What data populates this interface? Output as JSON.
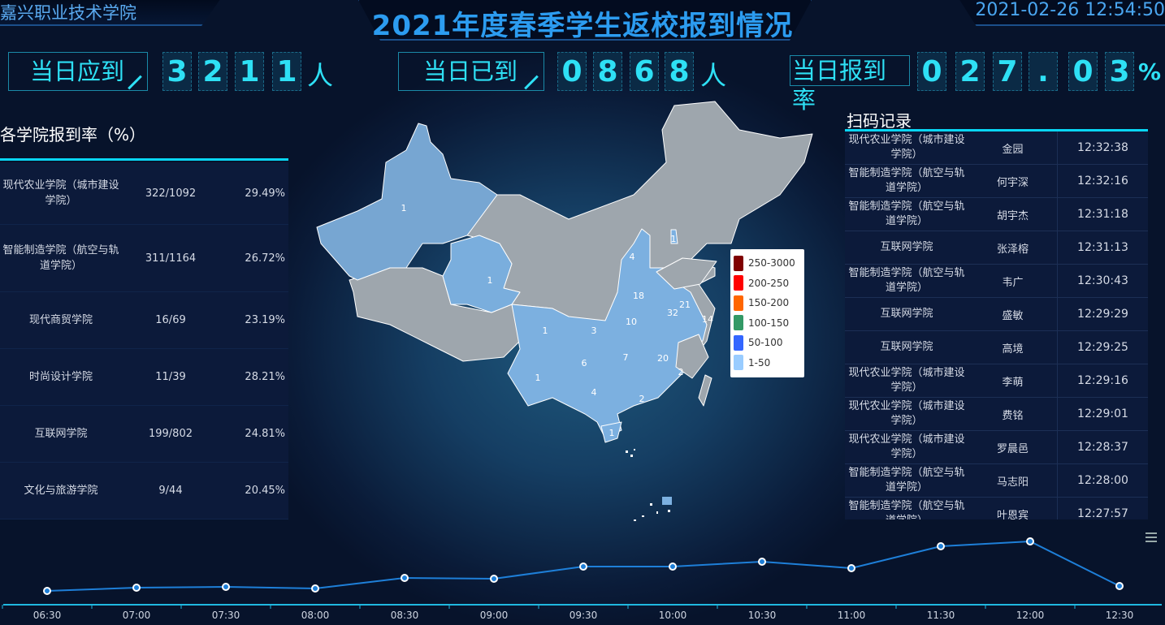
{
  "header": {
    "school": "嘉兴职业技术学院",
    "title": "2021年度春季学生返校报到情况",
    "datetime": "2021-02-26 12:54:50"
  },
  "stats": [
    {
      "label": "当日应到",
      "digits": [
        "3",
        "2",
        "1",
        "1"
      ],
      "unit": "人"
    },
    {
      "label": "当日已到",
      "digits": [
        "0",
        "8",
        "6",
        "8"
      ],
      "unit": "人"
    },
    {
      "label": "当日报到率",
      "digits": [
        "0",
        "2",
        "7",
        ".",
        "0",
        "3"
      ],
      "unit": "%"
    }
  ],
  "colleges": {
    "title": "各学院报到率（%）",
    "rows": [
      {
        "name": "现代农业学院（城市建设学院）",
        "ratio": "322/1092",
        "rate": "29.49%"
      },
      {
        "name": "智能制造学院（航空与轨道学院）",
        "ratio": "311/1164",
        "rate": "26.72%"
      },
      {
        "name": "现代商贸学院",
        "ratio": "16/69",
        "rate": "23.19%"
      },
      {
        "name": "时尚设计学院",
        "ratio": "11/39",
        "rate": "28.21%"
      },
      {
        "name": "互联网学院",
        "ratio": "199/802",
        "rate": "24.81%"
      },
      {
        "name": "文化与旅游学院",
        "ratio": "9/44",
        "rate": "20.45%"
      }
    ]
  },
  "scans": {
    "title": "扫码记录",
    "rows": [
      {
        "college": "现代农业学院（城市建设学院）",
        "name": "金园",
        "time": "12:32:38"
      },
      {
        "college": "智能制造学院（航空与轨道学院）",
        "name": "何宇深",
        "time": "12:32:16"
      },
      {
        "college": "智能制造学院（航空与轨道学院）",
        "name": "胡宇杰",
        "time": "12:31:18"
      },
      {
        "college": "互联网学院",
        "name": "张泽榕",
        "time": "12:31:13"
      },
      {
        "college": "智能制造学院（航空与轨道学院）",
        "name": "韦广",
        "time": "12:30:43"
      },
      {
        "college": "互联网学院",
        "name": "盛敏",
        "time": "12:29:29"
      },
      {
        "college": "互联网学院",
        "name": "高境",
        "time": "12:29:25"
      },
      {
        "college": "现代农业学院（城市建设学院）",
        "name": "李萌",
        "time": "12:29:16"
      },
      {
        "college": "现代农业学院（城市建设学院）",
        "name": "费铭",
        "time": "12:29:01"
      },
      {
        "college": "现代农业学院（城市建设学院）",
        "name": "罗晨邑",
        "time": "12:28:37"
      },
      {
        "college": "智能制造学院（航空与轨道学院）",
        "name": "马志阳",
        "time": "12:28:00"
      },
      {
        "college": "智能制造学院（航空与轨道学院）",
        "name": "叶恩宾",
        "time": "12:27:57"
      }
    ]
  },
  "map": {
    "legend": [
      {
        "label": "250-3000",
        "color": "#7f0000"
      },
      {
        "label": "200-250",
        "color": "#ff0000"
      },
      {
        "label": "150-200",
        "color": "#ff6600"
      },
      {
        "label": "100-150",
        "color": "#339966"
      },
      {
        "label": "50-100",
        "color": "#3366ff"
      },
      {
        "label": "1-50",
        "color": "#99ccff"
      }
    ],
    "provinces": [
      {
        "name": "新疆",
        "value": "1"
      },
      {
        "name": "青海",
        "value": "1"
      },
      {
        "name": "山西",
        "value": "4"
      },
      {
        "name": "天津",
        "value": "1"
      },
      {
        "name": "河南",
        "value": "18"
      },
      {
        "name": "安徽",
        "value": "32"
      },
      {
        "name": "江苏",
        "value": "21"
      },
      {
        "name": "上海",
        "value": "14"
      },
      {
        "name": "湖北",
        "value": "10"
      },
      {
        "name": "重庆",
        "value": "3"
      },
      {
        "name": "四川",
        "value": "1"
      },
      {
        "name": "贵州",
        "value": "6"
      },
      {
        "name": "湖南",
        "value": "7"
      },
      {
        "name": "江西",
        "value": "20"
      },
      {
        "name": "福建",
        "value": "2"
      },
      {
        "name": "云南",
        "value": "1"
      },
      {
        "name": "广西",
        "value": "4"
      },
      {
        "name": "广东",
        "value": "2"
      },
      {
        "name": "海南",
        "value": "1"
      }
    ]
  },
  "chart_data": {
    "type": "line",
    "title": "",
    "xlabel": "",
    "ylabel": "",
    "categories": [
      "06:30",
      "07:00",
      "07:30",
      "08:00",
      "08:30",
      "09:00",
      "09:30",
      "10:00",
      "10:30",
      "11:00",
      "11:30",
      "12:00",
      "12:30"
    ],
    "values": [
      17,
      21,
      22,
      20,
      33,
      32,
      47,
      47,
      53,
      45,
      72,
      78,
      23
    ],
    "ylim": [
      0,
      95
    ],
    "color": "#1e7fd8"
  }
}
